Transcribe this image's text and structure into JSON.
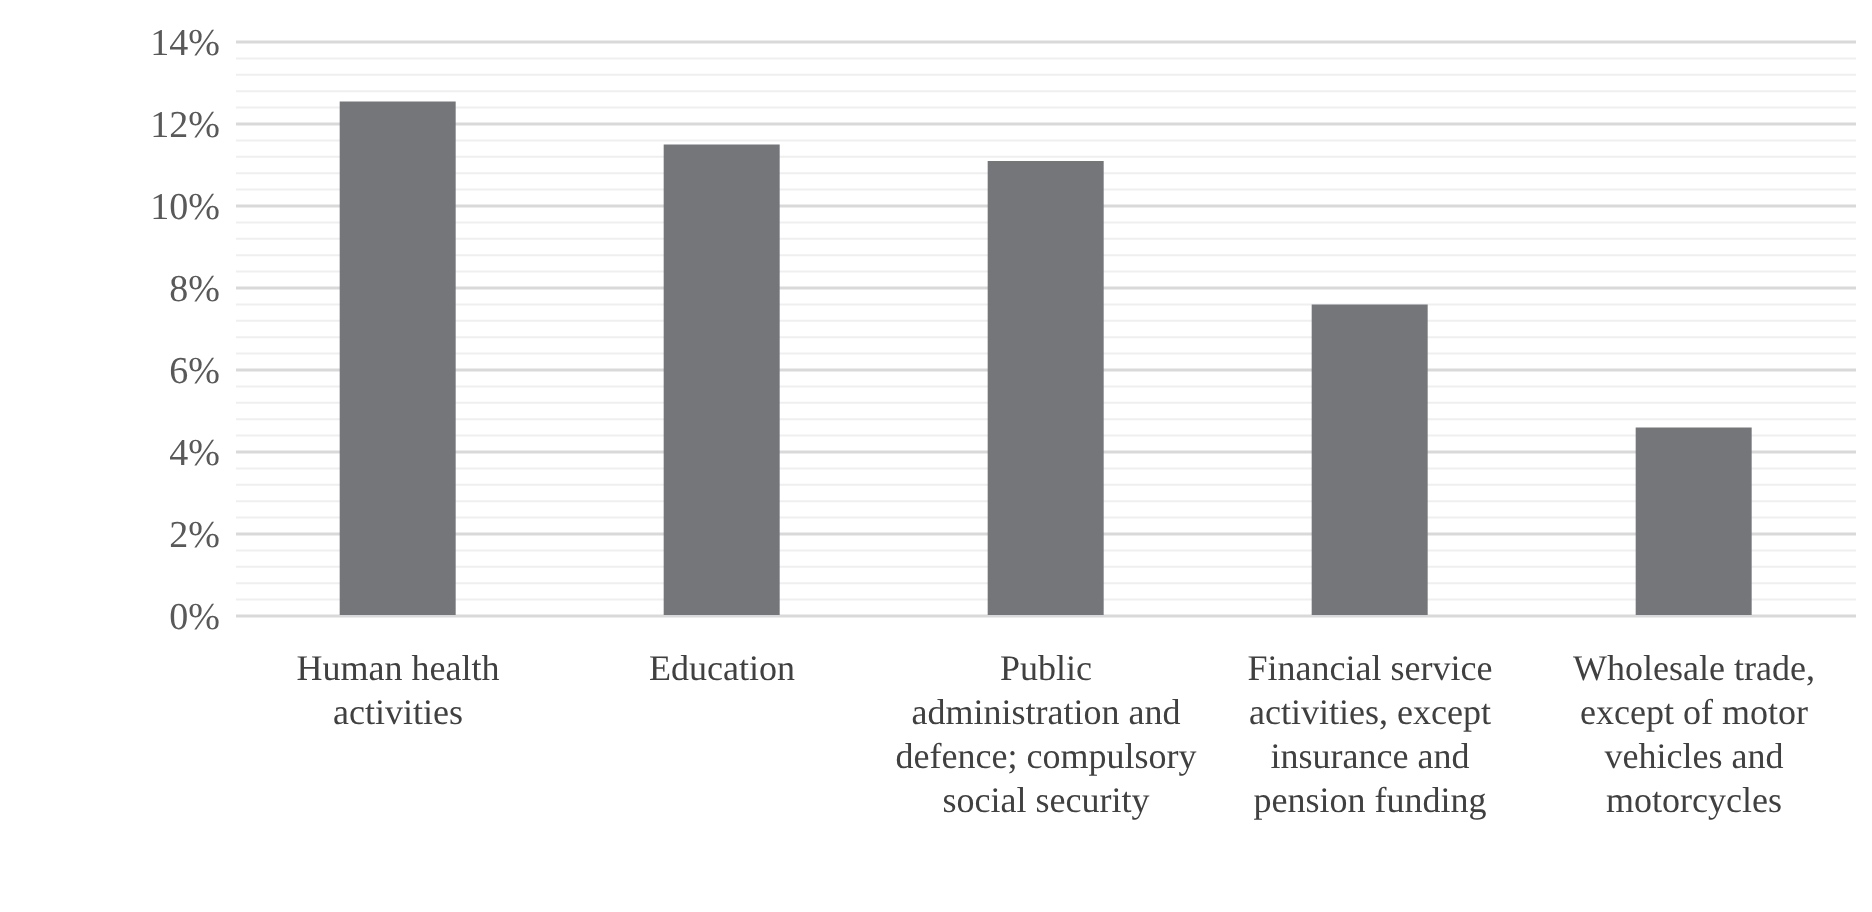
{
  "chart_data": {
    "type": "bar",
    "categories": [
      "Human health activities",
      "Education",
      "Public administration and defence; compulsory social security",
      "Financial service activities, except insurance and pension funding",
      "Wholesale trade, except of motor vehicles and motorcycles"
    ],
    "values": [
      12.55,
      11.5,
      11.1,
      7.6,
      4.6
    ],
    "color": "#75767a",
    "ylim": [
      0,
      14
    ],
    "yticks": [
      {
        "value": 0,
        "label": "0%"
      },
      {
        "value": 0.4,
        "label": null
      },
      {
        "value": 0.8,
        "label": null
      },
      {
        "value": 1.2,
        "label": null
      },
      {
        "value": 1.6,
        "label": null
      },
      {
        "value": 2,
        "label": "2%"
      },
      {
        "value": 2.4,
        "label": null
      },
      {
        "value": 2.8,
        "label": null
      },
      {
        "value": 3.2,
        "label": null
      },
      {
        "value": 3.6,
        "label": null
      },
      {
        "value": 4,
        "label": "4%"
      },
      {
        "value": 4.4,
        "label": null
      },
      {
        "value": 4.8,
        "label": null
      },
      {
        "value": 5.2,
        "label": null
      },
      {
        "value": 5.6,
        "label": null
      },
      {
        "value": 6,
        "label": "6%"
      },
      {
        "value": 6.4,
        "label": null
      },
      {
        "value": 6.8,
        "label": null
      },
      {
        "value": 7.2,
        "label": null
      },
      {
        "value": 7.6,
        "label": null
      },
      {
        "value": 8,
        "label": "8%"
      },
      {
        "value": 8.4,
        "label": null
      },
      {
        "value": 8.8,
        "label": null
      },
      {
        "value": 9.2,
        "label": null
      },
      {
        "value": 9.6,
        "label": null
      },
      {
        "value": 10,
        "label": "10%"
      },
      {
        "value": 10.4,
        "label": null
      },
      {
        "value": 10.8,
        "label": null
      },
      {
        "value": 11.2,
        "label": null
      },
      {
        "value": 11.6,
        "label": null
      },
      {
        "value": 12,
        "label": "12%"
      },
      {
        "value": 12.4,
        "label": null
      },
      {
        "value": 12.8,
        "label": null
      },
      {
        "value": 13.2,
        "label": null
      },
      {
        "value": 13.6,
        "label": null
      },
      {
        "value": 14,
        "label": "14%"
      }
    ],
    "grid": "y"
  }
}
